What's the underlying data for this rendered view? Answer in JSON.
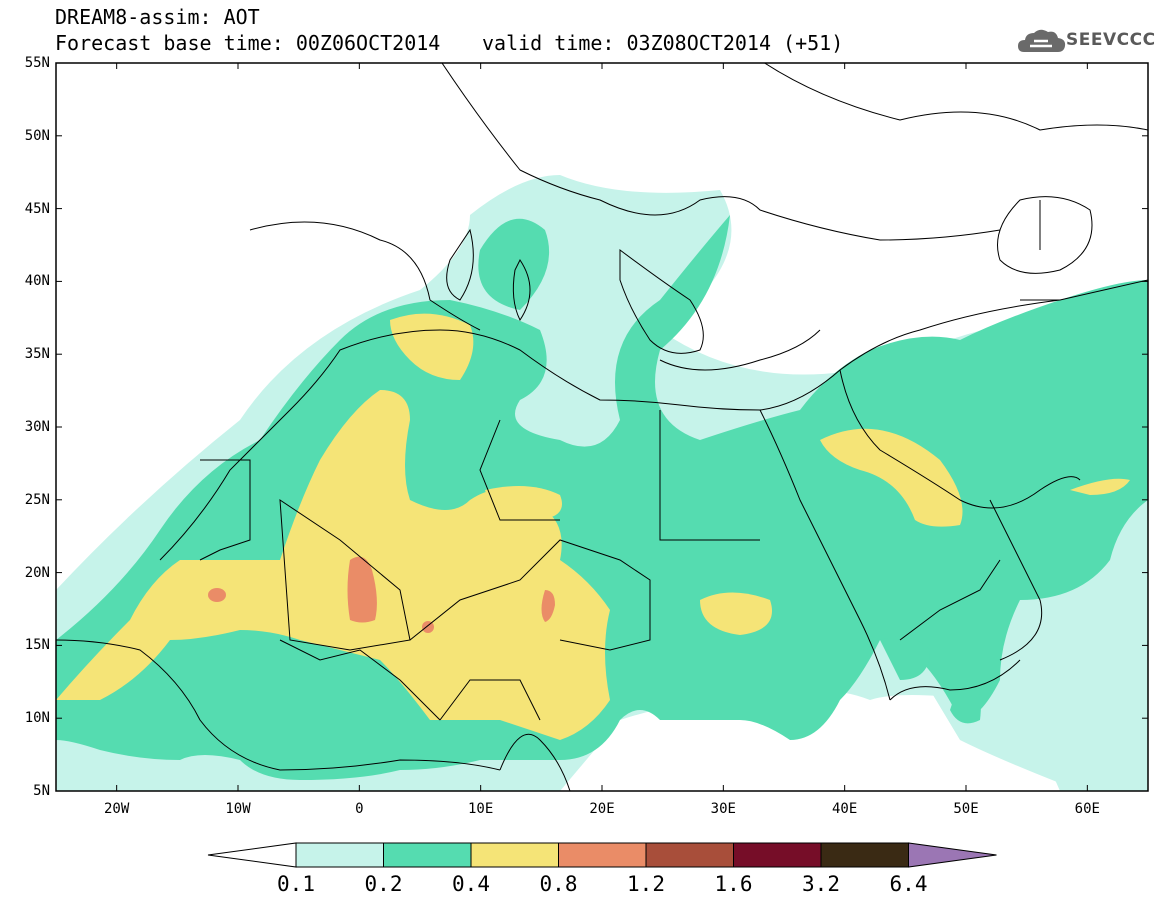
{
  "title": {
    "line1": "DREAM8-assim: AOT",
    "line2": "Forecast base time: 00Z06OCT2014",
    "valid": "valid time: 03Z08OCT2014 (+51)"
  },
  "logo": {
    "text": "SEEVCCC",
    "icon": "cloud-icon"
  },
  "map": {
    "lat_labels": [
      "55N",
      "50N",
      "45N",
      "40N",
      "35N",
      "30N",
      "25N",
      "20N",
      "15N",
      "10N",
      "5N"
    ],
    "lon_labels": [
      "20W",
      "10W",
      "0",
      "10E",
      "20E",
      "30E",
      "40E",
      "50E",
      "60E"
    ],
    "extent": {
      "lon_min": -25,
      "lon_max": 65,
      "lat_min": 5,
      "lat_max": 55
    }
  },
  "colorbar": {
    "labels": [
      "0.1",
      "0.2",
      "0.4",
      "0.8",
      "1.2",
      "1.6",
      "3.2",
      "6.4"
    ],
    "colors": [
      "#c6f3ea",
      "#55dcb0",
      "#f5e477",
      "#ea8c67",
      "#a84e3a",
      "#760d28",
      "#3a2a14",
      "#9b76b4"
    ]
  }
}
